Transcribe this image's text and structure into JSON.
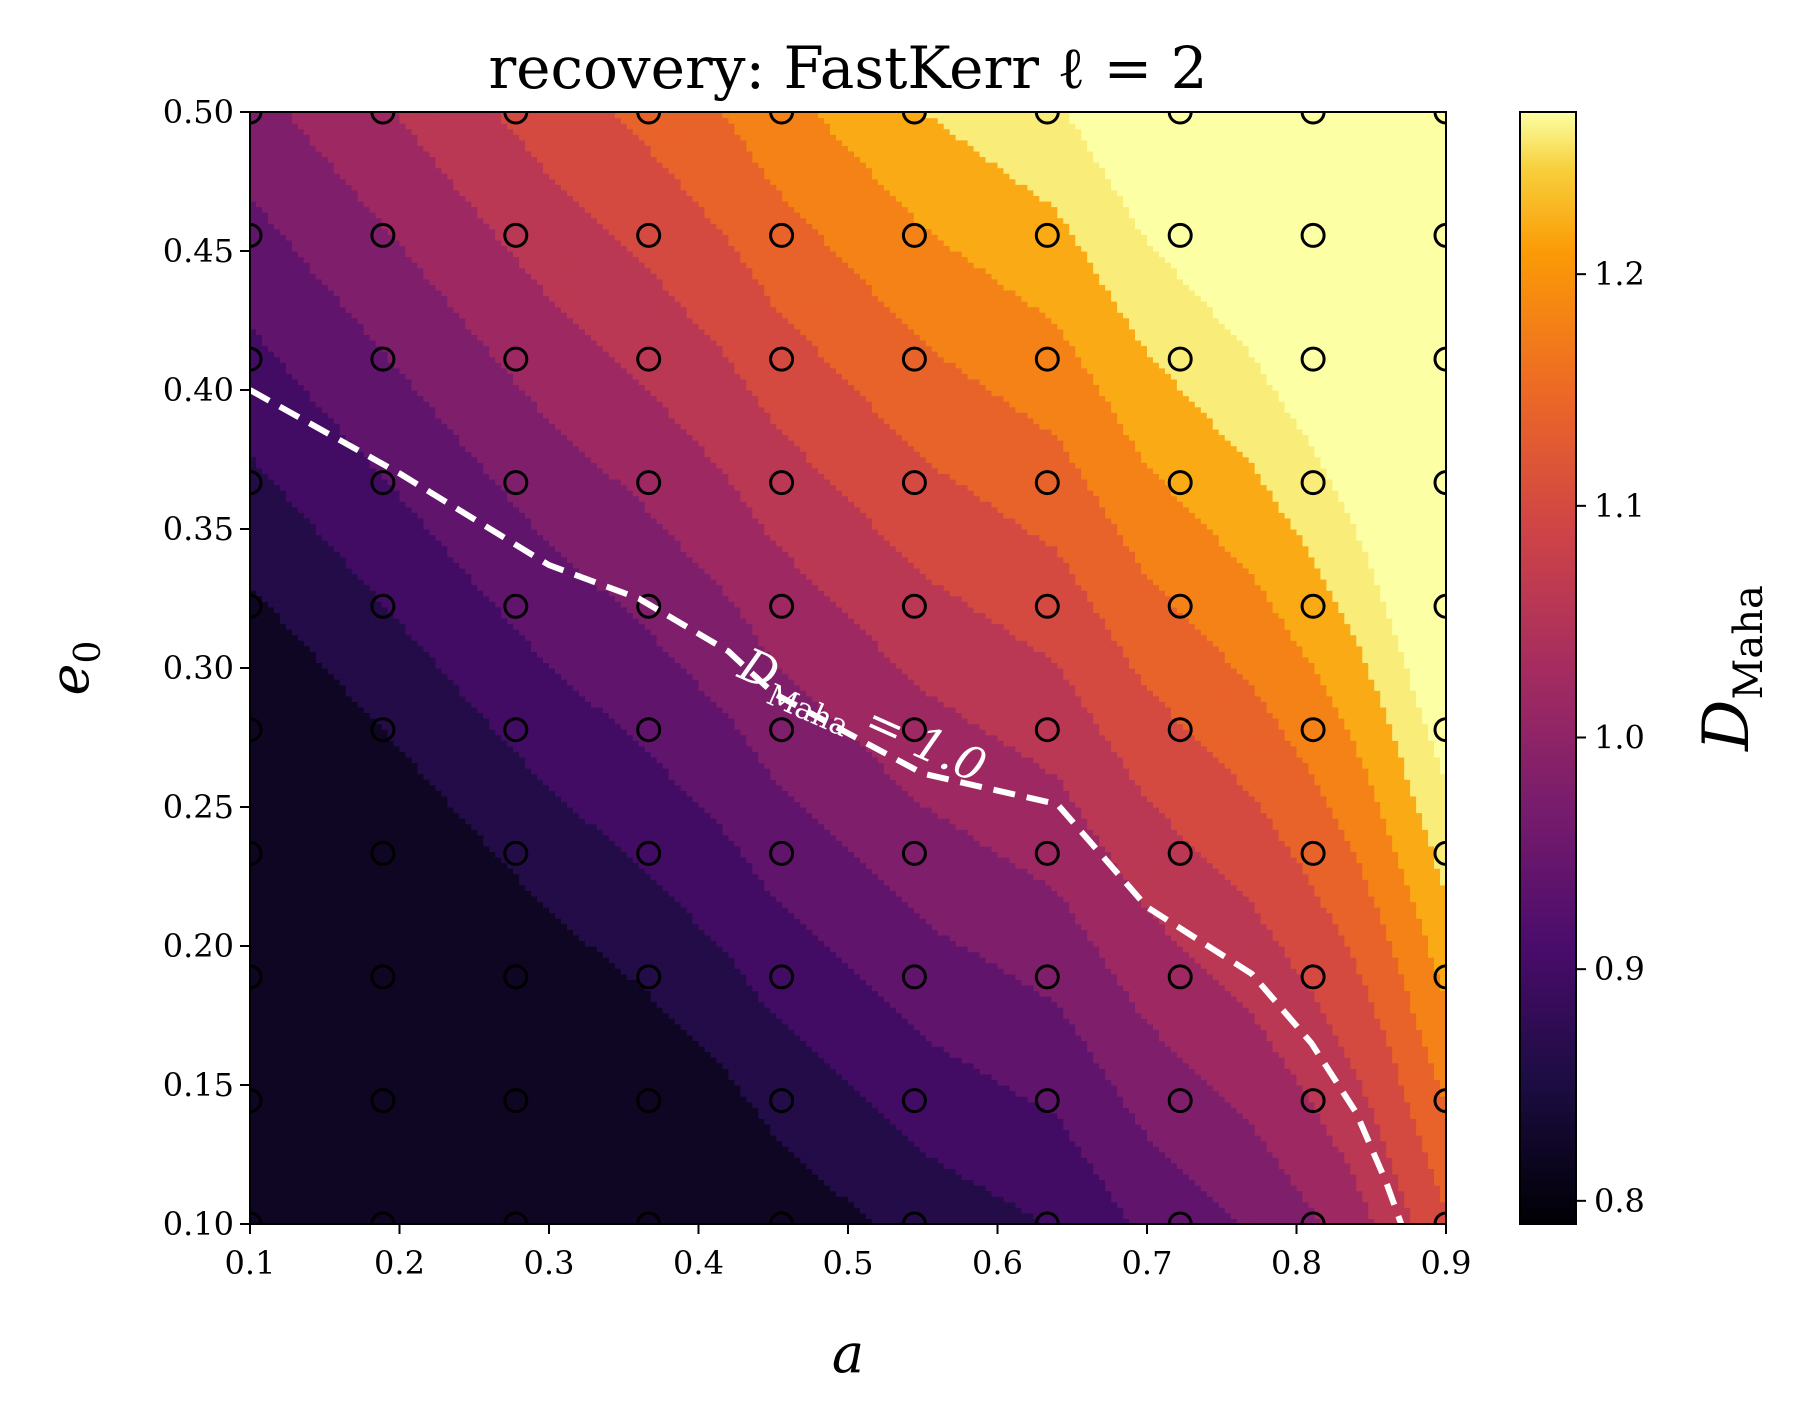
{
  "chart_data": {
    "type": "heatmap",
    "subtype": "filled-contour",
    "title": "recovery: FastKerr ℓ = 2",
    "xlabel": "a",
    "ylabel": "e",
    "ylabel_subscript": "0",
    "colorbar_label": "D",
    "colorbar_label_subscript": "Maha",
    "colormap": "inferno",
    "xlim": [
      0.1,
      0.9
    ],
    "ylim": [
      0.1,
      0.5
    ],
    "x_ticks": [
      "0.1",
      "0.2",
      "0.3",
      "0.4",
      "0.5",
      "0.6",
      "0.7",
      "0.8",
      "0.9"
    ],
    "y_ticks": [
      "0.10",
      "0.15",
      "0.20",
      "0.25",
      "0.30",
      "0.35",
      "0.40",
      "0.45",
      "0.50"
    ],
    "colorbar_range": [
      0.79,
      1.27
    ],
    "colorbar_ticks": [
      "0.8",
      "0.9",
      "1.0",
      "1.1",
      "1.2"
    ],
    "grid_x": [
      0.1,
      0.1889,
      0.2778,
      0.3667,
      0.4556,
      0.5444,
      0.6333,
      0.7222,
      0.8111,
      0.9
    ],
    "grid_y": [
      0.1,
      0.1444,
      0.1889,
      0.2333,
      0.2778,
      0.3222,
      0.3667,
      0.4111,
      0.4556,
      0.5
    ],
    "contour_levels": [
      0.8,
      0.84,
      0.88,
      0.92,
      0.96,
      1.0,
      1.04,
      1.08,
      1.12,
      1.16,
      1.2,
      1.24,
      1.28
    ],
    "reference_contour": {
      "level": 1.0,
      "style": "white dashed",
      "label_main": "D",
      "label_sub": "Maha",
      "label_rest": " = 1.0",
      "points": [
        [
          0.1,
          0.4
        ],
        [
          0.2,
          0.37
        ],
        [
          0.3,
          0.337
        ],
        [
          0.36,
          0.325
        ],
        [
          0.42,
          0.306
        ],
        [
          0.45,
          0.291
        ],
        [
          0.55,
          0.262
        ],
        [
          0.64,
          0.251
        ],
        [
          0.7,
          0.214
        ],
        [
          0.77,
          0.19
        ],
        [
          0.81,
          0.165
        ],
        [
          0.84,
          0.14
        ],
        [
          0.86,
          0.115
        ],
        [
          0.87,
          0.1
        ]
      ]
    },
    "grid_markers": "open black circles at every grid point",
    "grid": false
  }
}
